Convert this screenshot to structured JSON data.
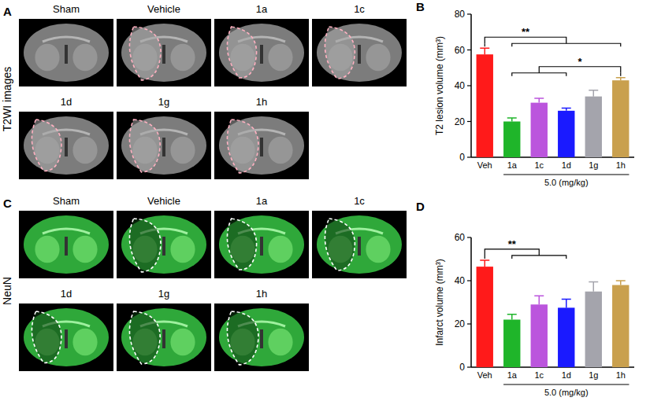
{
  "figure": {
    "image_panels": [
      {
        "letter": "A",
        "row_label": "T2WI images",
        "labels": [
          "Sham",
          "Vehicle",
          "1a",
          "1c",
          "1d",
          "1g",
          "1h"
        ]
      },
      {
        "letter": "C",
        "row_label": "NeuN",
        "labels": [
          "Sham",
          "Vehicle",
          "1a",
          "1c",
          "1d",
          "1g",
          "1h"
        ]
      }
    ],
    "chart_letters": [
      "B",
      "D"
    ]
  },
  "chart_data": [
    {
      "type": "bar",
      "y_label": "T2 lesion volume (mm³)",
      "x_label": "5.0 (mg/kg)",
      "categories": [
        "Veh",
        "1a",
        "1c",
        "1d",
        "1g",
        "1h"
      ],
      "values": [
        57.5,
        20,
        30.5,
        26,
        34,
        43
      ],
      "errors": [
        3.5,
        2,
        2.5,
        1.5,
        3.5,
        1.5
      ],
      "colors": [
        "#ff1a1a",
        "#1fb52a",
        "#bb55dd",
        "#1a1aff",
        "#a4a4ac",
        "#c9a04e"
      ],
      "ylim": [
        0,
        80
      ],
      "yticks": [
        0,
        20,
        40,
        60,
        80
      ],
      "annotations": [
        {
          "text": "**",
          "from": [
            "Veh"
          ],
          "to": [
            "1a",
            "1h"
          ]
        },
        {
          "text": "*",
          "from": [
            "1a",
            "1d"
          ],
          "to": [
            "1h"
          ]
        }
      ]
    },
    {
      "type": "bar",
      "y_label": "Infarct volume (mm³)",
      "x_label": "5.0 (mg/kg)",
      "categories": [
        "Veh",
        "1a",
        "1c",
        "1d",
        "1g",
        "1h"
      ],
      "values": [
        46.5,
        22,
        29,
        27.5,
        35,
        38
      ],
      "errors": [
        3,
        2.5,
        4,
        4,
        4.5,
        2
      ],
      "colors": [
        "#ff1a1a",
        "#1fb52a",
        "#bb55dd",
        "#1a1aff",
        "#a4a4ac",
        "#c9a04e"
      ],
      "ylim": [
        0,
        60
      ],
      "yticks": [
        0,
        20,
        40,
        60
      ],
      "annotations": [
        {
          "text": "**",
          "from": [
            "Veh"
          ],
          "to": [
            "1a",
            "1d"
          ]
        }
      ]
    }
  ]
}
